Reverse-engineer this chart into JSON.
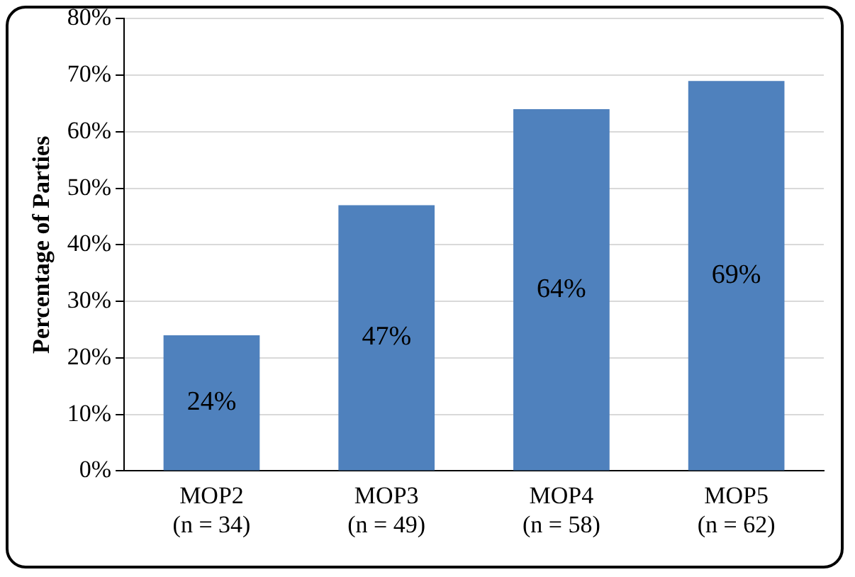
{
  "chart_data": {
    "type": "bar",
    "ylabel": "Percentage of Parties",
    "categories": [
      "MOP2\n(n = 34)",
      "MOP3\n(n = 49)",
      "MOP4\n(n = 58)",
      "MOP5\n(n = 62)"
    ],
    "values": [
      24,
      47,
      64,
      69
    ],
    "color": "#4f81bd",
    "value_labels": [
      "24%",
      "47%",
      "64%",
      "69%"
    ],
    "ylim": [
      0,
      80
    ],
    "yticks": [
      {
        "value": 0,
        "label": "0%"
      },
      {
        "value": 10,
        "label": "10%"
      },
      {
        "value": 20,
        "label": "20%"
      },
      {
        "value": 30,
        "label": "30%"
      },
      {
        "value": 40,
        "label": "40%"
      },
      {
        "value": 50,
        "label": "50%"
      },
      {
        "value": 60,
        "label": "60%"
      },
      {
        "value": 70,
        "label": "70%"
      },
      {
        "value": 80,
        "label": "80%"
      }
    ],
    "grid": "y",
    "legend": false
  }
}
